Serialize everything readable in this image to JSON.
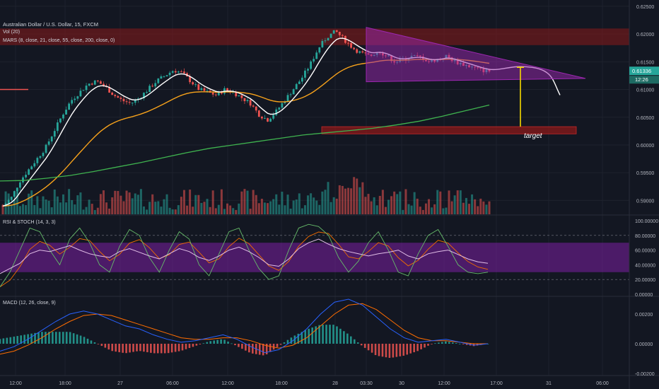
{
  "header": {
    "symbol": "Australian Dollar / U.S. Dollar, 15, FXCM",
    "vol": "Vol (20)",
    "mars": "MARS (8, close, 21, close, 55, close, 200, close, 0)",
    "rsi": "RSI & STOCH (14, 3, 3)",
    "macd": "MACD (12, 26, close, 9)"
  },
  "annotation": {
    "target_label": "target"
  },
  "price_badges": {
    "last": "0.61336",
    "countdown": "12:26"
  },
  "colors": {
    "bg": "#131722",
    "up": "#26a69a",
    "down": "#ef5350",
    "ema8": "#ffffff",
    "ema55": "#f7a21b",
    "ema200": "#3fb34f",
    "rsi_band": "#7b1fa2",
    "triangle": "#9c27b0",
    "zone": "#8b1a1a",
    "target_arrow": "#f5d800",
    "macd_line": "#2962ff",
    "signal_line": "#ff6d00"
  },
  "chart_data": [
    {
      "type": "candlestick",
      "title": "Australian Dollar / U.S. Dollar, 15, FXCM",
      "ylim": [
        0.5875,
        0.6255
      ],
      "y_ticks": [
        "0.62500",
        "0.62000",
        "0.61500",
        "0.61000",
        "0.60500",
        "0.60000",
        "0.59500",
        "0.59000"
      ],
      "x_ticks": [
        "12:00",
        "18:00",
        "27",
        "06:00",
        "12:00",
        "18:00",
        "28",
        "03:30",
        "30",
        "12:00",
        "17:00",
        "31",
        "06:00"
      ],
      "price_path": [
        0.589,
        0.5905,
        0.5935,
        0.5955,
        0.5975,
        0.5995,
        0.6025,
        0.6055,
        0.608,
        0.6095,
        0.611,
        0.6115,
        0.6105,
        0.609,
        0.608,
        0.6075,
        0.6085,
        0.61,
        0.6115,
        0.6125,
        0.6135,
        0.613,
        0.6115,
        0.61,
        0.6095,
        0.609,
        0.61,
        0.6095,
        0.6085,
        0.6075,
        0.6055,
        0.6045,
        0.606,
        0.608,
        0.61,
        0.612,
        0.6145,
        0.6175,
        0.6195,
        0.6205,
        0.619,
        0.6175,
        0.6165,
        0.616,
        0.617,
        0.616,
        0.615,
        0.6155,
        0.616,
        0.6158,
        0.615,
        0.6155,
        0.616,
        0.615,
        0.6145,
        0.614,
        0.6135,
        0.6133
      ],
      "ema200": [
        0.5935,
        0.5936,
        0.594,
        0.5945,
        0.5952,
        0.596,
        0.5968,
        0.5977,
        0.5986,
        0.5994,
        0.6,
        0.6006,
        0.6012,
        0.6018,
        0.6022,
        0.6026,
        0.603,
        0.6036,
        0.6043,
        0.6052,
        0.6062,
        0.6072
      ],
      "resistance_zone": [
        0.618,
        0.621
      ],
      "target_zone": [
        0.602,
        0.6033
      ],
      "triangle": [
        [
          0.6212,
          0.6114
        ],
        [
          0.612
        ]
      ],
      "annotations": [
        "target"
      ],
      "last_price": 0.61336
    },
    {
      "type": "bar",
      "title": "Vol (20)"
    },
    {
      "type": "line",
      "title": "RSI & STOCH (14, 3, 3)",
      "ylim": [
        0,
        100
      ],
      "y_ticks": [
        "100.00000",
        "80.00000",
        "60.00000",
        "40.00000",
        "20.00000",
        "0.00000"
      ],
      "band": [
        30,
        70
      ],
      "rsi": [
        28,
        35,
        42,
        55,
        60,
        58,
        62,
        66,
        60,
        55,
        52,
        50,
        58,
        62,
        57,
        52,
        48,
        55,
        62,
        58,
        50,
        46,
        52,
        60,
        64,
        58,
        50,
        40,
        38,
        48,
        62,
        70,
        75,
        68,
        62,
        58,
        55,
        52,
        55,
        57,
        60,
        52,
        48,
        55,
        58,
        60,
        54,
        48,
        44,
        42
      ],
      "stoch_k": [
        10,
        30,
        60,
        90,
        85,
        60,
        40,
        75,
        90,
        70,
        40,
        30,
        65,
        88,
        80,
        50,
        30,
        60,
        85,
        75,
        40,
        25,
        55,
        85,
        90,
        60,
        35,
        20,
        25,
        60,
        90,
        95,
        92,
        80,
        50,
        30,
        45,
        70,
        85,
        60,
        30,
        25,
        55,
        80,
        88,
        65,
        40,
        30,
        28,
        30
      ]
    },
    {
      "type": "line",
      "title": "MACD (12, 26, close, 9)",
      "y_ticks": [
        "0.00200",
        "0.00000",
        "-0.00200"
      ],
      "macd": [
        -0.0005,
        -0.0002,
        0.0003,
        0.0009,
        0.0015,
        0.002,
        0.0022,
        0.002,
        0.0016,
        0.0012,
        0.001,
        0.0006,
        0.0003,
        0.0001,
        0.0002,
        0.0004,
        0.0006,
        0.0003,
        -0.0002,
        -0.0006,
        -0.0004,
        0.0002,
        0.001,
        0.002,
        0.0028,
        0.003,
        0.0026,
        0.0018,
        0.001,
        0.0004,
        0.0001,
        0.0002,
        0.0003,
        0.0001,
        -0.0001,
        0.0
      ],
      "signal": [
        -0.0007,
        -0.0005,
        -0.0001,
        0.0004,
        0.001,
        0.0015,
        0.0019,
        0.002,
        0.0019,
        0.0016,
        0.0013,
        0.001,
        0.0007,
        0.0004,
        0.0003,
        0.0003,
        0.0004,
        0.0004,
        0.0002,
        -0.0001,
        -0.0003,
        -0.0001,
        0.0004,
        0.0012,
        0.002,
        0.0026,
        0.0027,
        0.0023,
        0.0016,
        0.0009,
        0.0004,
        0.0002,
        0.0002,
        0.0001,
        0.0,
        0.0
      ]
    }
  ]
}
